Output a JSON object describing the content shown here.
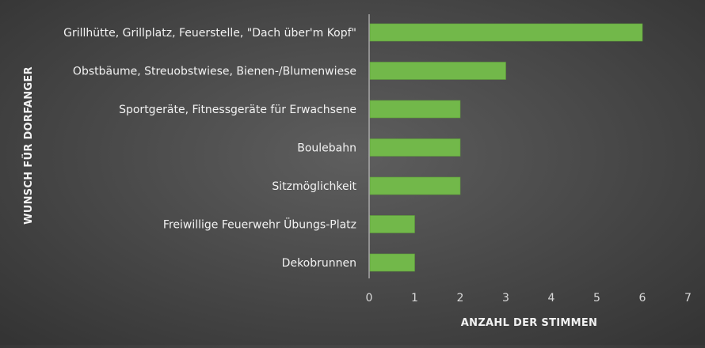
{
  "chart_data": {
    "type": "bar",
    "orientation": "horizontal",
    "title": "",
    "categories": [
      "Grillhütte, Grillplatz, Feuerstelle, \"Dach über'm Kopf\"",
      "Obstbäume, Streuobstwiese, Bienen-/Blumenwiese",
      "Sportgeräte, Fitnessgeräte für Erwachsene",
      "Boulebahn",
      "Sitzmöglichkeit",
      "Freiwillige Feuerwehr Übungs-Platz",
      "Dekobrunnen"
    ],
    "values": [
      6,
      3,
      2,
      2,
      2,
      1,
      1
    ],
    "xlabel": "ANZAHL DER STIMMEN",
    "ylabel": "WUNSCH FÜR DORFANGER",
    "xlim": [
      0,
      7
    ],
    "xticks": [
      "0",
      "1",
      "2",
      "3",
      "4",
      "5",
      "6",
      "7"
    ],
    "grid": false,
    "colors": {
      "bar": "#72b84a",
      "bar_edge": "#5e9c3b",
      "axis_line": "#bfbfbf"
    }
  }
}
